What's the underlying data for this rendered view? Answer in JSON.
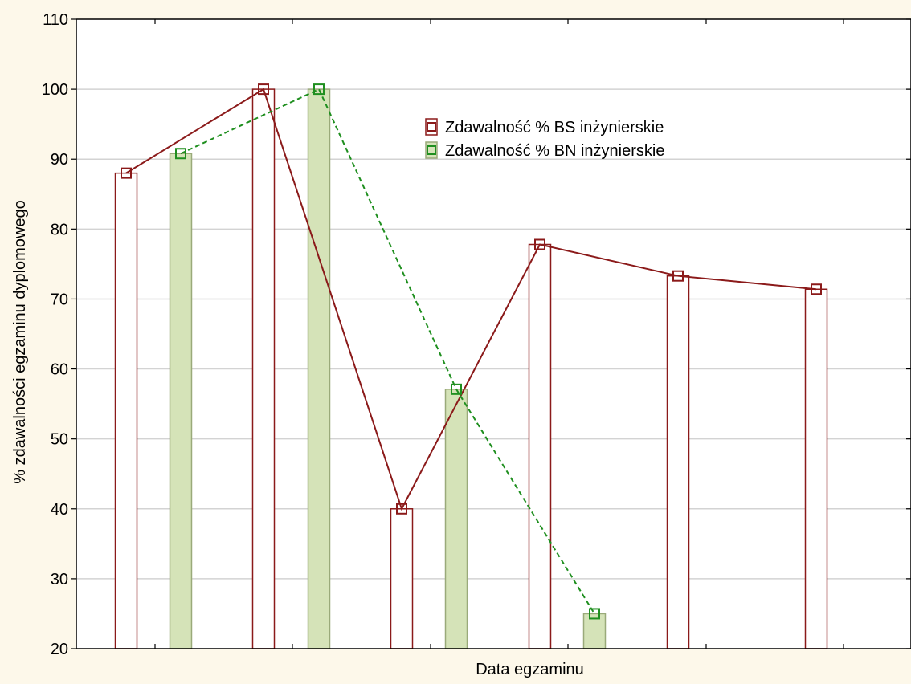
{
  "chart_data": {
    "type": "bar",
    "title": "",
    "xlabel": "Data egzaminu",
    "ylabel": "% zdawalności egzaminu dyplomowego",
    "ylim": [
      20,
      110
    ],
    "yticks": [
      20,
      30,
      40,
      50,
      60,
      70,
      80,
      90,
      100,
      110
    ],
    "categories": [
      "",
      "",
      "",
      "",
      "",
      ""
    ],
    "grid": true,
    "legend_position": "top-center",
    "series": [
      {
        "name": "Zdawalność % BS inżynierskie",
        "values": [
          88,
          100,
          40,
          77.8,
          73.3,
          71.4
        ],
        "color": "#8b1a1a",
        "bar_fill": "#ffffff",
        "line_style": "solid"
      },
      {
        "name": "Zdawalność % BN inżynierskie",
        "values": [
          90.8,
          100,
          57.1,
          25,
          null,
          null
        ],
        "color": "#1f8f1f",
        "bar_fill": "#d5e3b8",
        "bar_stroke": "#9aaa7a",
        "line_style": "dashed"
      }
    ],
    "colors": {
      "background": "#fdf8ea",
      "plot_background": "#ffffff",
      "grid": "#d3d3d3"
    }
  }
}
